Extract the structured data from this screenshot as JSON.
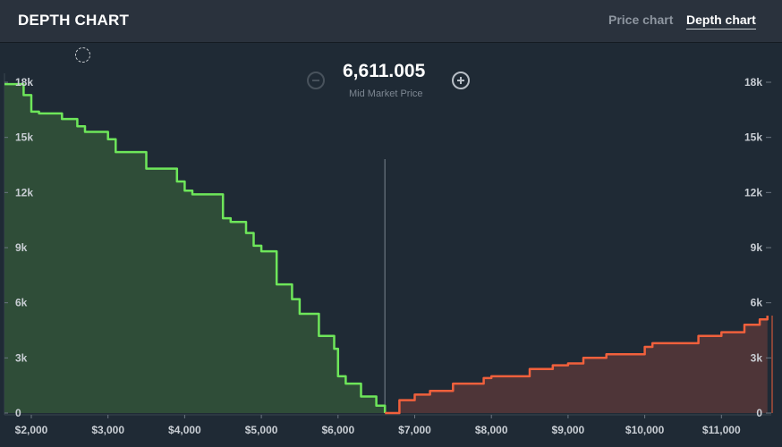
{
  "header": {
    "title": "DEPTH CHART",
    "tabs": [
      {
        "label": "Price chart",
        "active": false
      },
      {
        "label": "Depth chart",
        "active": true
      }
    ]
  },
  "mid_market": {
    "price": "6,611.005",
    "label": "Mid Market Price"
  },
  "colors": {
    "bid_line": "#6ee65a",
    "bid_fill": "#2f4d38",
    "ask_line": "#f0603c",
    "ask_fill": "#4e3538",
    "mid_line": "#7b858f"
  },
  "chart_data": {
    "type": "area",
    "x_tick_labels": [
      "$2,000",
      "$3,000",
      "$4,000",
      "$5,000",
      "$6,000",
      "$7,000",
      "$8,000",
      "$9,000",
      "$10,000",
      "$11,000"
    ],
    "x_ticks": [
      2000,
      3000,
      4000,
      5000,
      6000,
      7000,
      8000,
      9000,
      10000,
      11000
    ],
    "y_tick_labels": [
      "0",
      "3k",
      "6k",
      "9k",
      "12k",
      "15k",
      "18k"
    ],
    "y_ticks": [
      0,
      3000,
      6000,
      9000,
      12000,
      15000,
      18000
    ],
    "xlim": [
      1650,
      11650
    ],
    "ylim": [
      0,
      18000
    ],
    "mid_price": 6611.005,
    "series": [
      {
        "x": [
          1650,
          1900,
          2000,
          2100,
          2400,
          2600,
          2700,
          3000,
          3100,
          3500,
          3900,
          4000,
          4100,
          4500,
          4600,
          4800,
          4900,
          5000,
          5200,
          5400,
          5500,
          5750,
          5950,
          6000,
          6100,
          6300,
          6500,
          6611
        ],
        "y": [
          17900,
          17300,
          16400,
          16300,
          16000,
          15600,
          15300,
          14900,
          14200,
          13300,
          12600,
          12100,
          11900,
          10600,
          10400,
          9800,
          9100,
          8800,
          7000,
          6200,
          5400,
          4200,
          3500,
          2000,
          1600,
          900,
          400,
          0
        ]
      },
      {
        "x": [
          6611,
          6800,
          7000,
          7200,
          7500,
          7900,
          8000,
          8500,
          8800,
          9000,
          9200,
          9500,
          10000,
          10100,
          10700,
          11000,
          11300,
          11500,
          11600
        ],
        "y": [
          0,
          700,
          1000,
          1200,
          1600,
          1900,
          2000,
          2400,
          2600,
          2700,
          3000,
          3200,
          3600,
          3800,
          4200,
          4400,
          4800,
          5100,
          5300
        ]
      }
    ]
  }
}
